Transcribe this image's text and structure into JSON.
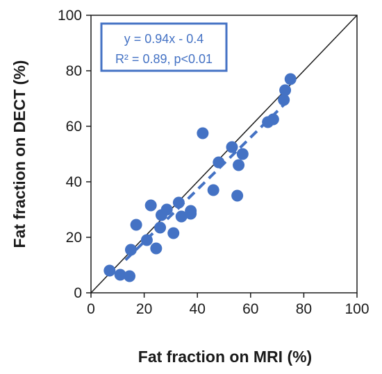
{
  "chart_data": {
    "type": "scatter",
    "xlabel": "Fat fraction on MRI (%)",
    "ylabel": "Fat fraction on DECT (%)",
    "xlim": [
      0,
      100
    ],
    "ylim": [
      0,
      100
    ],
    "xticks": [
      "0",
      "20",
      "40",
      "60",
      "80",
      "100"
    ],
    "yticks": [
      "0",
      "20",
      "40",
      "60",
      "80",
      "100"
    ],
    "grid": false,
    "annotation": {
      "line1": "y = 0.94x - 0.4",
      "line2": "R² = 0.89, p<0.01"
    },
    "identity_line": {
      "from": [
        0,
        0
      ],
      "to": [
        100,
        100
      ]
    },
    "regression": {
      "slope": 0.94,
      "intercept": -0.4,
      "x_range": [
        13,
        74
      ],
      "style": "dashed"
    },
    "series": [
      {
        "color": "#4472C4",
        "points": [
          {
            "x": 7,
            "y": 8
          },
          {
            "x": 11,
            "y": 6.5
          },
          {
            "x": 14.5,
            "y": 6
          },
          {
            "x": 15,
            "y": 15.5
          },
          {
            "x": 17,
            "y": 24.5
          },
          {
            "x": 21,
            "y": 19
          },
          {
            "x": 22.5,
            "y": 31.5
          },
          {
            "x": 24.5,
            "y": 16
          },
          {
            "x": 26,
            "y": 23.5
          },
          {
            "x": 26.5,
            "y": 28
          },
          {
            "x": 28.5,
            "y": 30
          },
          {
            "x": 31,
            "y": 21.5
          },
          {
            "x": 33,
            "y": 32.5
          },
          {
            "x": 34,
            "y": 27.5
          },
          {
            "x": 37.5,
            "y": 28.5
          },
          {
            "x": 37.5,
            "y": 29.5
          },
          {
            "x": 42,
            "y": 57.5
          },
          {
            "x": 46,
            "y": 37
          },
          {
            "x": 48,
            "y": 47
          },
          {
            "x": 53,
            "y": 52.5
          },
          {
            "x": 55,
            "y": 35
          },
          {
            "x": 55.5,
            "y": 46
          },
          {
            "x": 57,
            "y": 50
          },
          {
            "x": 66.5,
            "y": 61.5
          },
          {
            "x": 68.5,
            "y": 62.5
          },
          {
            "x": 72.5,
            "y": 69.5
          },
          {
            "x": 73,
            "y": 73
          },
          {
            "x": 75,
            "y": 77
          }
        ]
      }
    ]
  }
}
